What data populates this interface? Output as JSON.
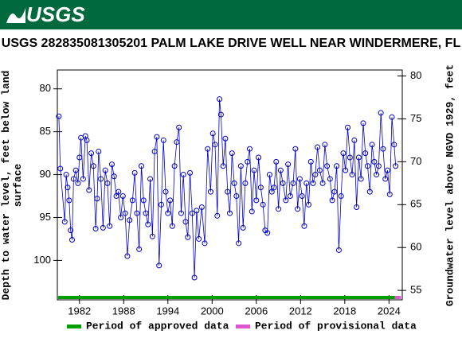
{
  "header": {
    "logo": "USGS"
  },
  "chart_data": {
    "type": "scatter",
    "title": "USGS 282835081305201 PALM LAKE DRIVE WELL NEAR WINDERMERE, FL",
    "ylabel": "Depth to water level, feet below land surface",
    "y2label": "Groundwater level above NGVD 1929, feet",
    "color": "#0000cc",
    "xlim": [
      1979.0,
      2025.8
    ],
    "xticks": [
      1982,
      1988,
      1994,
      2000,
      2006,
      2012,
      2018,
      2024
    ],
    "ylim": [
      77.8,
      104.6
    ],
    "y_inverted": true,
    "yticks": [
      80,
      85,
      90,
      95,
      100
    ],
    "y2lim": [
      53.9,
      80.7
    ],
    "y2ticks": [
      55,
      60,
      65,
      70,
      75,
      80
    ],
    "periods": [
      {
        "name": "Period of approved data",
        "color": "#00a000",
        "range": [
          1979.1,
          2024.8
        ]
      },
      {
        "name": "Period of provisional data",
        "color": "#e055d0",
        "range": [
          2024.8,
          2025.6
        ]
      }
    ],
    "x": [
      1979.2,
      1979.4,
      1980.0,
      1980.2,
      1980.4,
      1980.6,
      1980.8,
      1981.0,
      1981.2,
      1981.5,
      1981.8,
      1982.0,
      1982.2,
      1982.5,
      1982.8,
      1983.0,
      1983.3,
      1983.6,
      1983.9,
      1984.2,
      1984.4,
      1984.6,
      1984.9,
      1985.2,
      1985.5,
      1985.8,
      1986.1,
      1986.4,
      1986.7,
      1987.0,
      1987.3,
      1987.6,
      1987.9,
      1988.2,
      1988.5,
      1988.8,
      1989.2,
      1989.5,
      1989.8,
      1990.1,
      1990.4,
      1990.7,
      1991.0,
      1991.3,
      1991.6,
      1991.9,
      1992.2,
      1992.5,
      1992.8,
      1993.1,
      1993.4,
      1993.7,
      1994.0,
      1994.3,
      1994.6,
      1994.9,
      1995.2,
      1995.5,
      1995.8,
      1996.1,
      1996.4,
      1996.7,
      1997.0,
      1997.3,
      1997.6,
      1997.9,
      1998.2,
      1998.6,
      1999.0,
      1999.4,
      1999.8,
      2000.1,
      2000.4,
      2000.7,
      2001.0,
      2001.2,
      2001.5,
      2001.8,
      2002.1,
      2002.4,
      2002.7,
      2003.0,
      2003.3,
      2003.6,
      2003.9,
      2004.2,
      2004.5,
      2004.8,
      2005.1,
      2005.4,
      2005.7,
      2006.0,
      2006.3,
      2006.6,
      2006.9,
      2007.2,
      2007.5,
      2007.8,
      2008.1,
      2008.4,
      2008.7,
      2009.0,
      2009.3,
      2009.6,
      2010.0,
      2010.3,
      2010.6,
      2011.0,
      2011.3,
      2011.6,
      2011.9,
      2012.2,
      2012.5,
      2012.8,
      2013.1,
      2013.4,
      2013.7,
      2014.0,
      2014.3,
      2014.6,
      2015.0,
      2015.3,
      2015.6,
      2016.0,
      2016.3,
      2016.6,
      2016.9,
      2017.2,
      2017.5,
      2017.8,
      2018.1,
      2018.4,
      2018.7,
      2019.0,
      2019.3,
      2019.6,
      2019.9,
      2020.2,
      2020.5,
      2020.8,
      2021.1,
      2021.4,
      2021.7,
      2022.0,
      2022.3,
      2022.6,
      2022.9,
      2023.2,
      2023.5,
      2023.8,
      2024.1,
      2024.4,
      2024.7,
      2024.9
    ],
    "values": [
      83.2,
      89.3,
      95.5,
      90.0,
      91.5,
      93.0,
      96.5,
      97.6,
      90.5,
      89.5,
      91.0,
      88.0,
      85.7,
      90.5,
      85.5,
      86.0,
      91.8,
      87.5,
      89.0,
      96.3,
      92.8,
      87.3,
      90.5,
      96.2,
      89.5,
      91.0,
      96.0,
      88.8,
      90.2,
      92.5,
      92.0,
      95.0,
      92.5,
      94.5,
      99.5,
      95.3,
      93.0,
      89.8,
      94.5,
      98.7,
      89.0,
      93.0,
      94.5,
      95.8,
      90.5,
      97.2,
      87.3,
      85.6,
      100.6,
      93.5,
      86.0,
      92.0,
      94.5,
      93.0,
      96.0,
      89.0,
      86.2,
      84.5,
      94.5,
      90.0,
      95.5,
      97.3,
      89.8,
      94.5,
      102.0,
      94.2,
      97.5,
      93.8,
      98.0,
      87.0,
      92.0,
      85.2,
      86.5,
      94.8,
      81.2,
      83.0,
      89.0,
      85.8,
      92.0,
      94.5,
      87.5,
      91.0,
      92.5,
      98.0,
      89.0,
      96.2,
      91.0,
      88.5,
      87.0,
      94.3,
      89.5,
      93.0,
      88.0,
      91.5,
      93.5,
      96.5,
      96.8,
      90.0,
      92.0,
      91.5,
      88.5,
      94.0,
      89.5,
      91.0,
      93.0,
      88.8,
      92.5,
      91.0,
      87.0,
      94.0,
      90.5,
      92.5,
      96.0,
      91.0,
      93.5,
      88.5,
      91.0,
      90.0,
      86.8,
      89.5,
      91.0,
      86.5,
      89.0,
      90.5,
      93.0,
      92.0,
      89.0,
      98.8,
      92.5,
      87.5,
      89.5,
      84.5,
      88.0,
      90.0,
      86.0,
      93.8,
      88.0,
      90.5,
      84.0,
      87.5,
      89.0,
      92.0,
      86.5,
      88.5,
      90.0,
      89.0,
      82.8,
      87.0,
      90.5,
      89.5,
      92.3,
      83.3,
      86.5,
      89.0
    ]
  }
}
